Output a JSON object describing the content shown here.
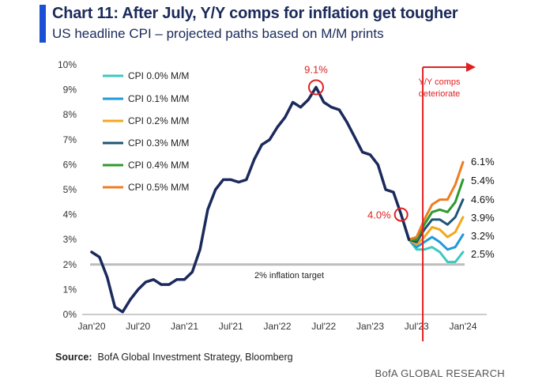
{
  "header": {
    "title": "Chart 11: After July, Y/Y comps for inflation get tougher",
    "subtitle": "US headline CPI – projected paths based on M/M prints"
  },
  "footer": {
    "source_label": "Source:",
    "source_text": "BofA Global Investment Strategy, Bloomberg",
    "brand": "BofA GLOBAL RESEARCH"
  },
  "chart_data": {
    "type": "line",
    "title": "Chart 11: After July, Y/Y comps for inflation get tougher",
    "subtitle": "US headline CPI – projected paths based on M/M prints",
    "ylim": [
      0,
      10
    ],
    "yticks": [
      0,
      1,
      2,
      3,
      4,
      5,
      6,
      7,
      8,
      9,
      10
    ],
    "ytick_labels": [
      "0%",
      "1%",
      "2%",
      "3%",
      "4%",
      "5%",
      "6%",
      "7%",
      "8%",
      "9%",
      "10%"
    ],
    "xlim": [
      0,
      48
    ],
    "xticks": [
      0,
      6,
      12,
      18,
      24,
      30,
      36,
      42,
      48
    ],
    "xtick_labels": [
      "Jan'20",
      "Jul'20",
      "Jan'21",
      "Jul'21",
      "Jan'22",
      "Jul'22",
      "Jan'23",
      "Jul'23",
      "Jan'24"
    ],
    "x_unit": "months since Jan 2020",
    "actual": {
      "name": "US headline CPI Y/Y",
      "color": "#1b2a5c",
      "x": [
        0,
        1,
        2,
        3,
        4,
        5,
        6,
        7,
        8,
        9,
        10,
        11,
        12,
        13,
        14,
        15,
        16,
        17,
        18,
        19,
        20,
        21,
        22,
        23,
        24,
        25,
        26,
        27,
        28,
        29,
        30,
        31,
        32,
        33,
        34,
        35,
        36,
        37,
        38,
        39,
        40,
        41
      ],
      "values": [
        2.5,
        2.3,
        1.5,
        0.3,
        0.1,
        0.6,
        1.0,
        1.3,
        1.4,
        1.2,
        1.2,
        1.4,
        1.4,
        1.7,
        2.6,
        4.2,
        5.0,
        5.4,
        5.4,
        5.3,
        5.4,
        6.2,
        6.8,
        7.0,
        7.5,
        7.9,
        8.5,
        8.3,
        8.6,
        9.1,
        8.5,
        8.3,
        8.2,
        7.7,
        7.1,
        6.5,
        6.4,
        6.0,
        5.0,
        4.9,
        4.0,
        3.0
      ]
    },
    "projections": {
      "start_x": 41,
      "x": [
        41,
        42,
        43,
        44,
        45,
        46,
        47,
        48
      ],
      "series": [
        {
          "name": "CPI 0.0% M/M",
          "color": "#3cc8c0",
          "values": [
            3.0,
            2.6,
            2.6,
            2.7,
            2.5,
            2.1,
            2.1,
            2.5
          ],
          "end_label": "2.5%"
        },
        {
          "name": "CPI 0.1% M/M",
          "color": "#1f9ad8",
          "values": [
            3.0,
            2.7,
            2.9,
            3.1,
            2.9,
            2.6,
            2.7,
            3.2
          ],
          "end_label": "3.2%"
        },
        {
          "name": "CPI 0.2% M/M",
          "color": "#f2a81d",
          "values": [
            3.0,
            2.8,
            3.1,
            3.5,
            3.4,
            3.1,
            3.3,
            3.9
          ],
          "end_label": "3.9%"
        },
        {
          "name": "CPI 0.3% M/M",
          "color": "#1f5575",
          "values": [
            3.0,
            2.9,
            3.4,
            3.8,
            3.8,
            3.6,
            3.9,
            4.6
          ],
          "end_label": "4.6%"
        },
        {
          "name": "CPI 0.4% M/M",
          "color": "#2e9a2e",
          "values": [
            3.0,
            3.0,
            3.6,
            4.1,
            4.2,
            4.1,
            4.5,
            5.4
          ],
          "end_label": "5.4%"
        },
        {
          "name": "CPI 0.5% M/M",
          "color": "#ee7d22",
          "values": [
            3.0,
            3.1,
            3.8,
            4.4,
            4.6,
            4.6,
            5.2,
            6.1
          ],
          "end_label": "6.1%"
        }
      ]
    },
    "target": {
      "value": 2.0,
      "label": "2% inflation target",
      "color": "#bdbdbd"
    },
    "annotations": {
      "peak": {
        "x": 29,
        "y": 9.1,
        "label": "9.1%"
      },
      "current": {
        "x": 40,
        "y": 4.0,
        "label": "4.0%"
      },
      "divider": {
        "x": 42.8,
        "label_line1": "Y/Y comps",
        "label_line2": "deteriorate",
        "color": "#e02020"
      }
    },
    "legend": {
      "placement": "top-left"
    },
    "grid": false
  }
}
